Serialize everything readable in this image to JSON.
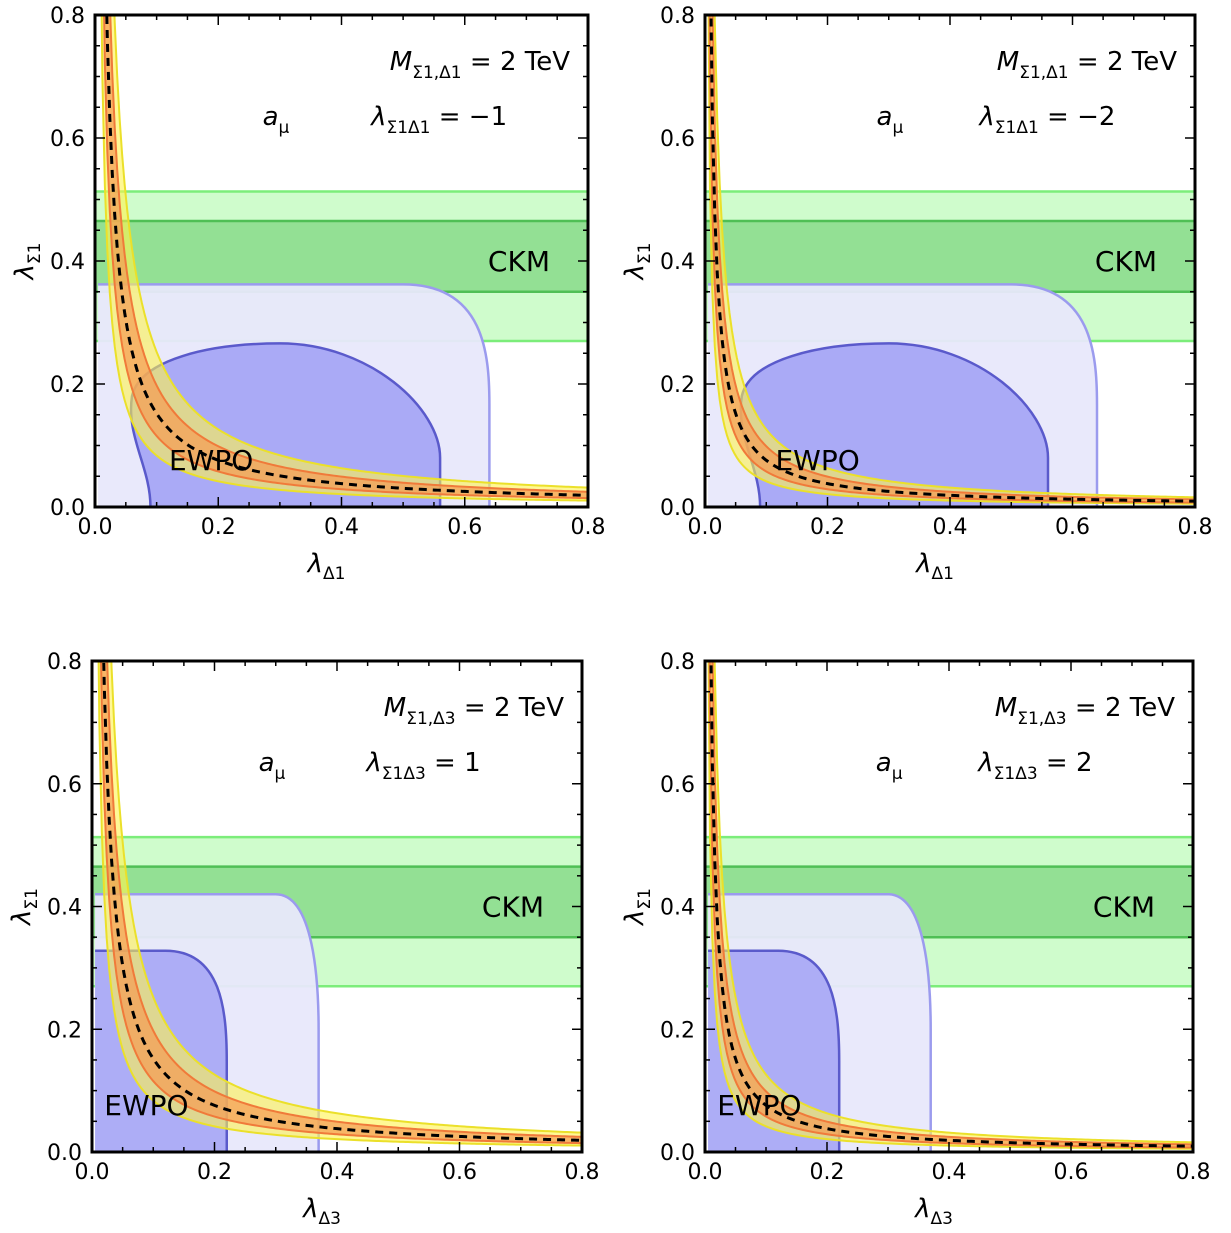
{
  "chart_data": [
    {
      "type": "area",
      "xlabel": {
        "main": "λ",
        "sub": "Δ1"
      },
      "ylabel": {
        "main": "λ",
        "sub": "Σ1"
      },
      "xlim": [
        0,
        0.8
      ],
      "ylim": [
        0,
        0.8
      ],
      "xticks": [
        "0.0",
        "0.2",
        "0.4",
        "0.6",
        "0.8"
      ],
      "yticks": [
        "0.0",
        "0.2",
        "0.4",
        "0.6",
        "0.8"
      ],
      "annotation_mass": {
        "pre": "M",
        "sub": "Σ1,Δ1",
        "post": " = 2 TeV"
      },
      "annotation_coupling": {
        "pre": "λ",
        "sub": "Σ1Δ1",
        "post": " = −1"
      },
      "amu_label": {
        "main": "a",
        "sub": "μ"
      },
      "ckm_label": "CKM",
      "ewpo_label": "EWPO",
      "amu_curve": {
        "central_k": 0.0152,
        "orange_band": [
          0.76,
          1.3
        ],
        "yellow_band": [
          0.55,
          1.66
        ]
      },
      "ckm": {
        "light_band": [
          0.27,
          0.513
        ],
        "dark_band": [
          0.35,
          0.465
        ]
      },
      "ewpo_light": {
        "x_left": 0.005,
        "x_right": 0.64,
        "y_top": 0.362,
        "corner_x": 0.5
      },
      "ewpo_dark": {
        "x_left_bottom": 0.09,
        "x_left_min": 0.06,
        "x_right": 0.56,
        "y_top": 0.266,
        "peak_x": 0.3
      }
    },
    {
      "type": "area",
      "xlabel": {
        "main": "λ",
        "sub": "Δ1"
      },
      "ylabel": {
        "main": "λ",
        "sub": "Σ1"
      },
      "xlim": [
        0,
        0.8
      ],
      "ylim": [
        0,
        0.8
      ],
      "xticks": [
        "0.0",
        "0.2",
        "0.4",
        "0.6",
        "0.8"
      ],
      "yticks": [
        "0.0",
        "0.2",
        "0.4",
        "0.6",
        "0.8"
      ],
      "annotation_mass": {
        "pre": "M",
        "sub": "Σ1,Δ1",
        "post": " = 2 TeV"
      },
      "annotation_coupling": {
        "pre": "λ",
        "sub": "Σ1Δ1",
        "post": " = −2"
      },
      "amu_label": {
        "main": "a",
        "sub": "μ"
      },
      "ckm_label": "CKM",
      "ewpo_label": "EWPO",
      "amu_curve": {
        "central_k": 0.0076,
        "orange_band": [
          0.76,
          1.3
        ],
        "yellow_band": [
          0.55,
          1.66
        ]
      },
      "ckm": {
        "light_band": [
          0.27,
          0.513
        ],
        "dark_band": [
          0.35,
          0.465
        ]
      },
      "ewpo_light": {
        "x_left": 0.005,
        "x_right": 0.64,
        "y_top": 0.362,
        "corner_x": 0.5
      },
      "ewpo_dark": {
        "x_left_bottom": 0.09,
        "x_left_min": 0.06,
        "x_right": 0.56,
        "y_top": 0.266,
        "peak_x": 0.3
      }
    },
    {
      "type": "area",
      "xlabel": {
        "main": "λ",
        "sub": "Δ3"
      },
      "ylabel": {
        "main": "λ",
        "sub": "Σ1"
      },
      "xlim": [
        0,
        0.8
      ],
      "ylim": [
        0,
        0.8
      ],
      "xticks": [
        "0.0",
        "0.2",
        "0.4",
        "0.6",
        "0.8"
      ],
      "yticks": [
        "0.0",
        "0.2",
        "0.4",
        "0.6",
        "0.8"
      ],
      "annotation_mass": {
        "pre": "M",
        "sub": "Σ1,Δ3",
        "post": " = 2 TeV"
      },
      "annotation_coupling": {
        "pre": "λ",
        "sub": "Σ1Δ3",
        "post": " = 1"
      },
      "amu_label": {
        "main": "a",
        "sub": "μ"
      },
      "ckm_label": "CKM",
      "ewpo_label": "EWPO",
      "amu_curve": {
        "central_k": 0.0152,
        "orange_band": [
          0.76,
          1.3
        ],
        "yellow_band": [
          0.55,
          1.66
        ]
      },
      "ckm": {
        "light_band": [
          0.27,
          0.513
        ],
        "dark_band": [
          0.35,
          0.465
        ]
      },
      "ewpo_light": {
        "x_left": 0.005,
        "x_right": 0.37,
        "y_top": 0.42,
        "corner_x": 0.3
      },
      "ewpo_dark": {
        "x_left": 0.005,
        "x_right": 0.22,
        "y_top": 0.328,
        "corner_x": 0.12
      }
    },
    {
      "type": "area",
      "xlabel": {
        "main": "λ",
        "sub": "Δ3"
      },
      "ylabel": {
        "main": "λ",
        "sub": "Σ1"
      },
      "xlim": [
        0,
        0.8
      ],
      "ylim": [
        0,
        0.8
      ],
      "xticks": [
        "0.0",
        "0.2",
        "0.4",
        "0.6",
        "0.8"
      ],
      "yticks": [
        "0.0",
        "0.2",
        "0.4",
        "0.6",
        "0.8"
      ],
      "annotation_mass": {
        "pre": "M",
        "sub": "Σ1,Δ3",
        "post": " = 2 TeV"
      },
      "annotation_coupling": {
        "pre": "λ",
        "sub": "Σ1Δ3",
        "post": " = 2"
      },
      "amu_label": {
        "main": "a",
        "sub": "μ"
      },
      "ckm_label": "CKM",
      "ewpo_label": "EWPO",
      "amu_curve": {
        "central_k": 0.0076,
        "orange_band": [
          0.76,
          1.3
        ],
        "yellow_band": [
          0.55,
          1.66
        ]
      },
      "ckm": {
        "light_band": [
          0.27,
          0.513
        ],
        "dark_band": [
          0.35,
          0.465
        ]
      },
      "ewpo_light": {
        "x_left": 0.005,
        "x_right": 0.37,
        "y_top": 0.42,
        "corner_x": 0.3
      },
      "ewpo_dark": {
        "x_left": 0.005,
        "x_right": 0.22,
        "y_top": 0.328,
        "corner_x": 0.12
      }
    }
  ],
  "colors": {
    "yellow_fill": "#fff44f",
    "yellow_edge": "#ebe02a",
    "orange_fill": "#f59c55",
    "orange_edge": "#f07a3a",
    "ckm_light_fill": "#cffccc",
    "ckm_dark_fill": "#93e094",
    "ckm_light_edge": "#7ced7a",
    "ckm_dark_edge": "#4fbf55",
    "ewpo_light_fill": "#e8e8fb",
    "ewpo_light_edge": "#9b9bee",
    "ewpo_dark_fill": "#aaaaf6",
    "ewpo_dark_edge": "#5a5acb",
    "central_line": "#000000"
  }
}
